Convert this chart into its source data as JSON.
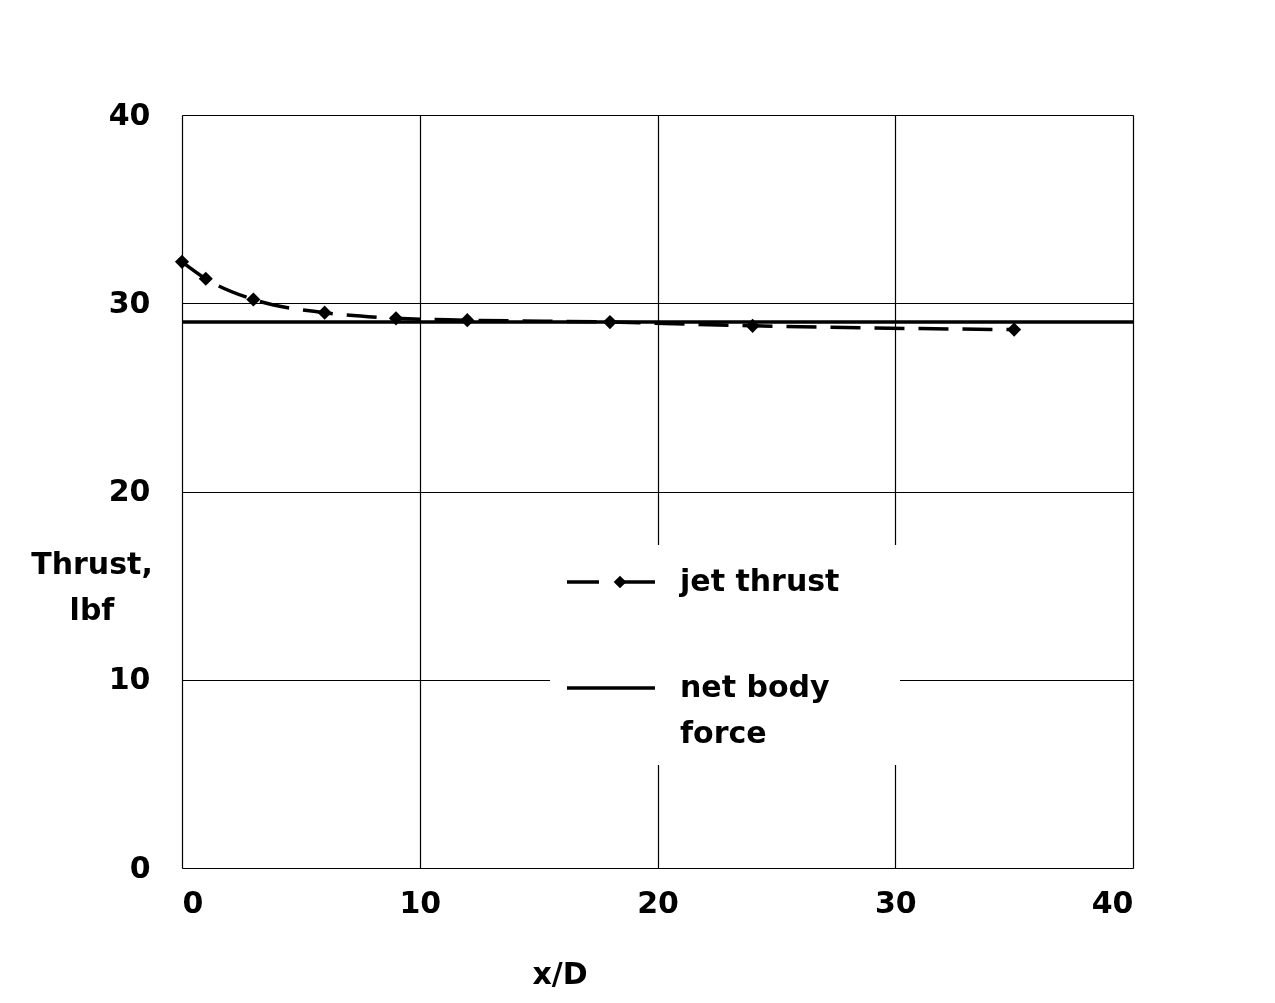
{
  "chart_data": {
    "type": "line",
    "xlabel": "x/D",
    "ylabel": "Thrust, lbf",
    "xlim": [
      0,
      40
    ],
    "ylim": [
      0,
      40
    ],
    "xticks": [
      0,
      10,
      20,
      30,
      40
    ],
    "yticks": [
      0,
      10,
      20,
      30,
      40
    ],
    "grid": true,
    "legend": "center",
    "series": [
      {
        "name": "jet thrust",
        "color": "#000000",
        "x": [
          0,
          1,
          3,
          6,
          9,
          12,
          18,
          24,
          35
        ],
        "values": [
          32.2,
          31.3,
          30.2,
          29.5,
          29.2,
          29.1,
          29.0,
          28.8,
          28.6
        ],
        "marker": "diamond",
        "line_style": "dashed"
      },
      {
        "name": "net body force",
        "color": "#000000",
        "x": [
          0,
          40
        ],
        "values": [
          29.0,
          29.0
        ],
        "marker": "none",
        "line_style": "solid"
      }
    ]
  }
}
